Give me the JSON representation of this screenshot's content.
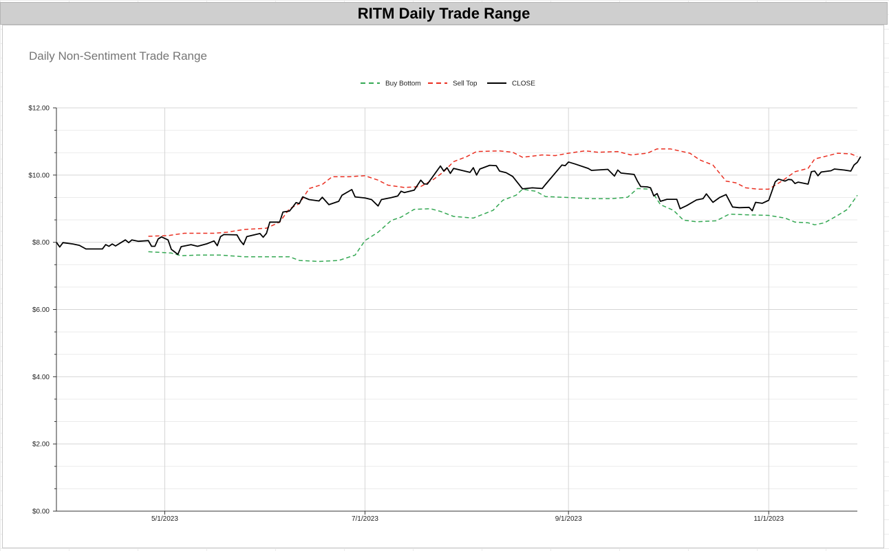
{
  "header": {
    "title": "RITM Daily Trade Range"
  },
  "chart_data": {
    "type": "line",
    "title": "Daily Non-Sentiment Trade Range",
    "xlabel": "",
    "ylabel": "",
    "ylim": [
      0,
      12
    ],
    "yticks": [
      "$0.00",
      "$2.00",
      "$4.00",
      "$6.00",
      "$8.00",
      "$10.00",
      "$12.00"
    ],
    "xticks": [
      "5/1/2023",
      "7/1/2023",
      "9/1/2023",
      "11/1/2023"
    ],
    "xticks_dates": [
      "2023-05-01",
      "2023-07-01",
      "2023-09-01",
      "2023-11-01"
    ],
    "xlim": [
      "2023-03-29",
      "2023-11-28"
    ],
    "grid": true,
    "legend_position": "top",
    "series": [
      {
        "name": "Buy Bottom",
        "color": "#34a853",
        "dash": true,
        "points": [
          [
            "2023-04-26",
            7.72
          ],
          [
            "2023-05-03",
            7.68
          ],
          [
            "2023-05-06",
            7.6
          ],
          [
            "2023-05-11",
            7.62
          ],
          [
            "2023-05-18",
            7.62
          ],
          [
            "2023-05-25",
            7.57
          ],
          [
            "2023-06-01",
            7.57
          ],
          [
            "2023-06-08",
            7.57
          ],
          [
            "2023-06-11",
            7.46
          ],
          [
            "2023-06-17",
            7.43
          ],
          [
            "2023-06-23",
            7.46
          ],
          [
            "2023-06-28",
            7.62
          ],
          [
            "2023-07-01",
            8.05
          ],
          [
            "2023-07-05",
            8.3
          ],
          [
            "2023-07-09",
            8.65
          ],
          [
            "2023-07-12",
            8.75
          ],
          [
            "2023-07-16",
            8.98
          ],
          [
            "2023-07-21",
            9.0
          ],
          [
            "2023-07-24",
            8.92
          ],
          [
            "2023-07-28",
            8.77
          ],
          [
            "2023-08-03",
            8.72
          ],
          [
            "2023-08-09",
            8.95
          ],
          [
            "2023-08-12",
            9.25
          ],
          [
            "2023-08-16",
            9.4
          ],
          [
            "2023-08-18",
            9.58
          ],
          [
            "2023-08-22",
            9.52
          ],
          [
            "2023-08-25",
            9.36
          ],
          [
            "2023-08-30",
            9.34
          ],
          [
            "2023-09-08",
            9.3
          ],
          [
            "2023-09-14",
            9.3
          ],
          [
            "2023-09-19",
            9.34
          ],
          [
            "2023-09-22",
            9.6
          ],
          [
            "2023-09-26",
            9.58
          ],
          [
            "2023-09-29",
            9.12
          ],
          [
            "2023-10-03",
            8.95
          ],
          [
            "2023-10-06",
            8.66
          ],
          [
            "2023-10-10",
            8.61
          ],
          [
            "2023-10-16",
            8.64
          ],
          [
            "2023-10-20",
            8.84
          ],
          [
            "2023-10-25",
            8.82
          ],
          [
            "2023-11-01",
            8.8
          ],
          [
            "2023-11-06",
            8.72
          ],
          [
            "2023-11-09",
            8.6
          ],
          [
            "2023-11-13",
            8.58
          ],
          [
            "2023-11-15",
            8.52
          ],
          [
            "2023-11-18",
            8.58
          ],
          [
            "2023-11-22",
            8.8
          ],
          [
            "2023-11-25",
            8.98
          ],
          [
            "2023-11-28",
            9.4
          ]
        ]
      },
      {
        "name": "Sell Top",
        "color": "#ea2e20",
        "dash": true,
        "points": [
          [
            "2023-04-26",
            8.18
          ],
          [
            "2023-05-02",
            8.2
          ],
          [
            "2023-05-07",
            8.27
          ],
          [
            "2023-05-16",
            8.27
          ],
          [
            "2023-05-20",
            8.3
          ],
          [
            "2023-05-25",
            8.38
          ],
          [
            "2023-06-01",
            8.42
          ],
          [
            "2023-06-05",
            8.6
          ],
          [
            "2023-06-08",
            9.0
          ],
          [
            "2023-06-11",
            9.15
          ],
          [
            "2023-06-14",
            9.6
          ],
          [
            "2023-06-18",
            9.72
          ],
          [
            "2023-06-21",
            9.95
          ],
          [
            "2023-06-26",
            9.95
          ],
          [
            "2023-07-01",
            9.98
          ],
          [
            "2023-07-05",
            9.85
          ],
          [
            "2023-07-08",
            9.7
          ],
          [
            "2023-07-13",
            9.63
          ],
          [
            "2023-07-18",
            9.66
          ],
          [
            "2023-07-22",
            9.88
          ],
          [
            "2023-07-25",
            10.1
          ],
          [
            "2023-07-28",
            10.4
          ],
          [
            "2023-08-01",
            10.55
          ],
          [
            "2023-08-04",
            10.7
          ],
          [
            "2023-08-11",
            10.72
          ],
          [
            "2023-08-15",
            10.68
          ],
          [
            "2023-08-18",
            10.53
          ],
          [
            "2023-08-24",
            10.6
          ],
          [
            "2023-08-28",
            10.58
          ],
          [
            "2023-09-01",
            10.65
          ],
          [
            "2023-09-06",
            10.72
          ],
          [
            "2023-09-10",
            10.68
          ],
          [
            "2023-09-16",
            10.7
          ],
          [
            "2023-09-20",
            10.6
          ],
          [
            "2023-09-25",
            10.65
          ],
          [
            "2023-09-28",
            10.78
          ],
          [
            "2023-10-02",
            10.78
          ],
          [
            "2023-10-08",
            10.65
          ],
          [
            "2023-10-11",
            10.45
          ],
          [
            "2023-10-15",
            10.3
          ],
          [
            "2023-10-19",
            9.82
          ],
          [
            "2023-10-22",
            9.77
          ],
          [
            "2023-10-25",
            9.62
          ],
          [
            "2023-10-29",
            9.58
          ],
          [
            "2023-11-01",
            9.58
          ],
          [
            "2023-11-05",
            9.82
          ],
          [
            "2023-11-09",
            10.1
          ],
          [
            "2023-11-13",
            10.2
          ],
          [
            "2023-11-15",
            10.48
          ],
          [
            "2023-11-18",
            10.55
          ],
          [
            "2023-11-22",
            10.65
          ],
          [
            "2023-11-26",
            10.63
          ],
          [
            "2023-11-28",
            10.55
          ]
        ]
      },
      {
        "name": "CLOSE",
        "color": "#000000",
        "dash": false,
        "points": [
          [
            "2023-03-29",
            8.0
          ],
          [
            "2023-03-30",
            7.86
          ],
          [
            "2023-03-31",
            7.99
          ],
          [
            "2023-04-03",
            7.95
          ],
          [
            "2023-04-05",
            7.91
          ],
          [
            "2023-04-07",
            7.8
          ],
          [
            "2023-04-12",
            7.8
          ],
          [
            "2023-04-13",
            7.93
          ],
          [
            "2023-04-14",
            7.88
          ],
          [
            "2023-04-15",
            7.95
          ],
          [
            "2023-04-16",
            7.89
          ],
          [
            "2023-04-19",
            8.07
          ],
          [
            "2023-04-20",
            7.99
          ],
          [
            "2023-04-21",
            8.07
          ],
          [
            "2023-04-23",
            8.03
          ],
          [
            "2023-04-26",
            8.05
          ],
          [
            "2023-04-27",
            7.88
          ],
          [
            "2023-04-28",
            7.88
          ],
          [
            "2023-04-29",
            8.1
          ],
          [
            "2023-04-30",
            8.16
          ],
          [
            "2023-05-02",
            8.07
          ],
          [
            "2023-05-03",
            7.79
          ],
          [
            "2023-05-05",
            7.64
          ],
          [
            "2023-05-06",
            7.87
          ],
          [
            "2023-05-09",
            7.93
          ],
          [
            "2023-05-11",
            7.88
          ],
          [
            "2023-05-14",
            7.96
          ],
          [
            "2023-05-16",
            8.04
          ],
          [
            "2023-05-17",
            7.9
          ],
          [
            "2023-05-18",
            8.17
          ],
          [
            "2023-05-19",
            8.23
          ],
          [
            "2023-05-23",
            8.22
          ],
          [
            "2023-05-24",
            8.05
          ],
          [
            "2023-05-25",
            7.93
          ],
          [
            "2023-05-26",
            8.17
          ],
          [
            "2023-05-30",
            8.26
          ],
          [
            "2023-05-31",
            8.15
          ],
          [
            "2023-06-01",
            8.27
          ],
          [
            "2023-06-02",
            8.6
          ],
          [
            "2023-06-05",
            8.6
          ],
          [
            "2023-06-06",
            8.9
          ],
          [
            "2023-06-08",
            8.93
          ],
          [
            "2023-06-09",
            9.05
          ],
          [
            "2023-06-10",
            9.18
          ],
          [
            "2023-06-11",
            9.15
          ],
          [
            "2023-06-12",
            9.35
          ],
          [
            "2023-06-14",
            9.27
          ],
          [
            "2023-06-17",
            9.23
          ],
          [
            "2023-06-18",
            9.34
          ],
          [
            "2023-06-20",
            9.12
          ],
          [
            "2023-06-23",
            9.22
          ],
          [
            "2023-06-24",
            9.4
          ],
          [
            "2023-06-27",
            9.57
          ],
          [
            "2023-06-28",
            9.35
          ],
          [
            "2023-07-01",
            9.32
          ],
          [
            "2023-07-03",
            9.27
          ],
          [
            "2023-07-05",
            9.08
          ],
          [
            "2023-07-06",
            9.27
          ],
          [
            "2023-07-09",
            9.33
          ],
          [
            "2023-07-11",
            9.38
          ],
          [
            "2023-07-12",
            9.52
          ],
          [
            "2023-07-13",
            9.48
          ],
          [
            "2023-07-16",
            9.55
          ],
          [
            "2023-07-18",
            9.85
          ],
          [
            "2023-07-19",
            9.74
          ],
          [
            "2023-07-20",
            9.73
          ],
          [
            "2023-07-24",
            10.27
          ],
          [
            "2023-07-25",
            10.12
          ],
          [
            "2023-07-26",
            10.22
          ],
          [
            "2023-07-27",
            10.05
          ],
          [
            "2023-07-28",
            10.2
          ],
          [
            "2023-08-02",
            10.08
          ],
          [
            "2023-08-03",
            10.22
          ],
          [
            "2023-08-04",
            10.0
          ],
          [
            "2023-08-05",
            10.18
          ],
          [
            "2023-08-08",
            10.29
          ],
          [
            "2023-08-10",
            10.28
          ],
          [
            "2023-08-11",
            10.12
          ],
          [
            "2023-08-13",
            10.07
          ],
          [
            "2023-08-15",
            9.96
          ],
          [
            "2023-08-18",
            9.59
          ],
          [
            "2023-08-21",
            9.62
          ],
          [
            "2023-08-24",
            9.6
          ],
          [
            "2023-08-25",
            9.72
          ],
          [
            "2023-08-30",
            10.3
          ],
          [
            "2023-08-31",
            10.28
          ],
          [
            "2023-09-01",
            10.39
          ],
          [
            "2023-09-03",
            10.33
          ],
          [
            "2023-09-07",
            10.2
          ],
          [
            "2023-09-08",
            10.14
          ],
          [
            "2023-09-13",
            10.17
          ],
          [
            "2023-09-15",
            9.97
          ],
          [
            "2023-09-16",
            10.15
          ],
          [
            "2023-09-17",
            10.06
          ],
          [
            "2023-09-21",
            10.02
          ],
          [
            "2023-09-22",
            9.82
          ],
          [
            "2023-09-23",
            9.66
          ],
          [
            "2023-09-25",
            9.65
          ],
          [
            "2023-09-26",
            9.62
          ],
          [
            "2023-09-27",
            9.38
          ],
          [
            "2023-09-28",
            9.45
          ],
          [
            "2023-09-29",
            9.22
          ],
          [
            "2023-10-01",
            9.28
          ],
          [
            "2023-10-04",
            9.28
          ],
          [
            "2023-10-05",
            9.0
          ],
          [
            "2023-10-07",
            9.09
          ],
          [
            "2023-10-10",
            9.26
          ],
          [
            "2023-10-12",
            9.3
          ],
          [
            "2023-10-13",
            9.44
          ],
          [
            "2023-10-15",
            9.19
          ],
          [
            "2023-10-17",
            9.33
          ],
          [
            "2023-10-19",
            9.42
          ],
          [
            "2023-10-21",
            9.05
          ],
          [
            "2023-10-23",
            9.03
          ],
          [
            "2023-10-26",
            9.04
          ],
          [
            "2023-10-27",
            8.94
          ],
          [
            "2023-10-28",
            9.19
          ],
          [
            "2023-10-30",
            9.16
          ],
          [
            "2023-11-01",
            9.25
          ],
          [
            "2023-11-03",
            9.8
          ],
          [
            "2023-11-04",
            9.88
          ],
          [
            "2023-11-06",
            9.82
          ],
          [
            "2023-11-07",
            9.87
          ],
          [
            "2023-11-08",
            9.86
          ],
          [
            "2023-11-09",
            9.75
          ],
          [
            "2023-11-10",
            9.79
          ],
          [
            "2023-11-13",
            9.73
          ],
          [
            "2023-11-14",
            10.1
          ],
          [
            "2023-11-15",
            10.12
          ],
          [
            "2023-11-16",
            9.98
          ],
          [
            "2023-11-17",
            10.09
          ],
          [
            "2023-11-20",
            10.13
          ],
          [
            "2023-11-21",
            10.18
          ],
          [
            "2023-11-24",
            10.15
          ],
          [
            "2023-11-26",
            10.12
          ],
          [
            "2023-11-27",
            10.3
          ],
          [
            "2023-11-28",
            10.38
          ],
          [
            "2023-11-29",
            10.55
          ]
        ]
      }
    ]
  }
}
